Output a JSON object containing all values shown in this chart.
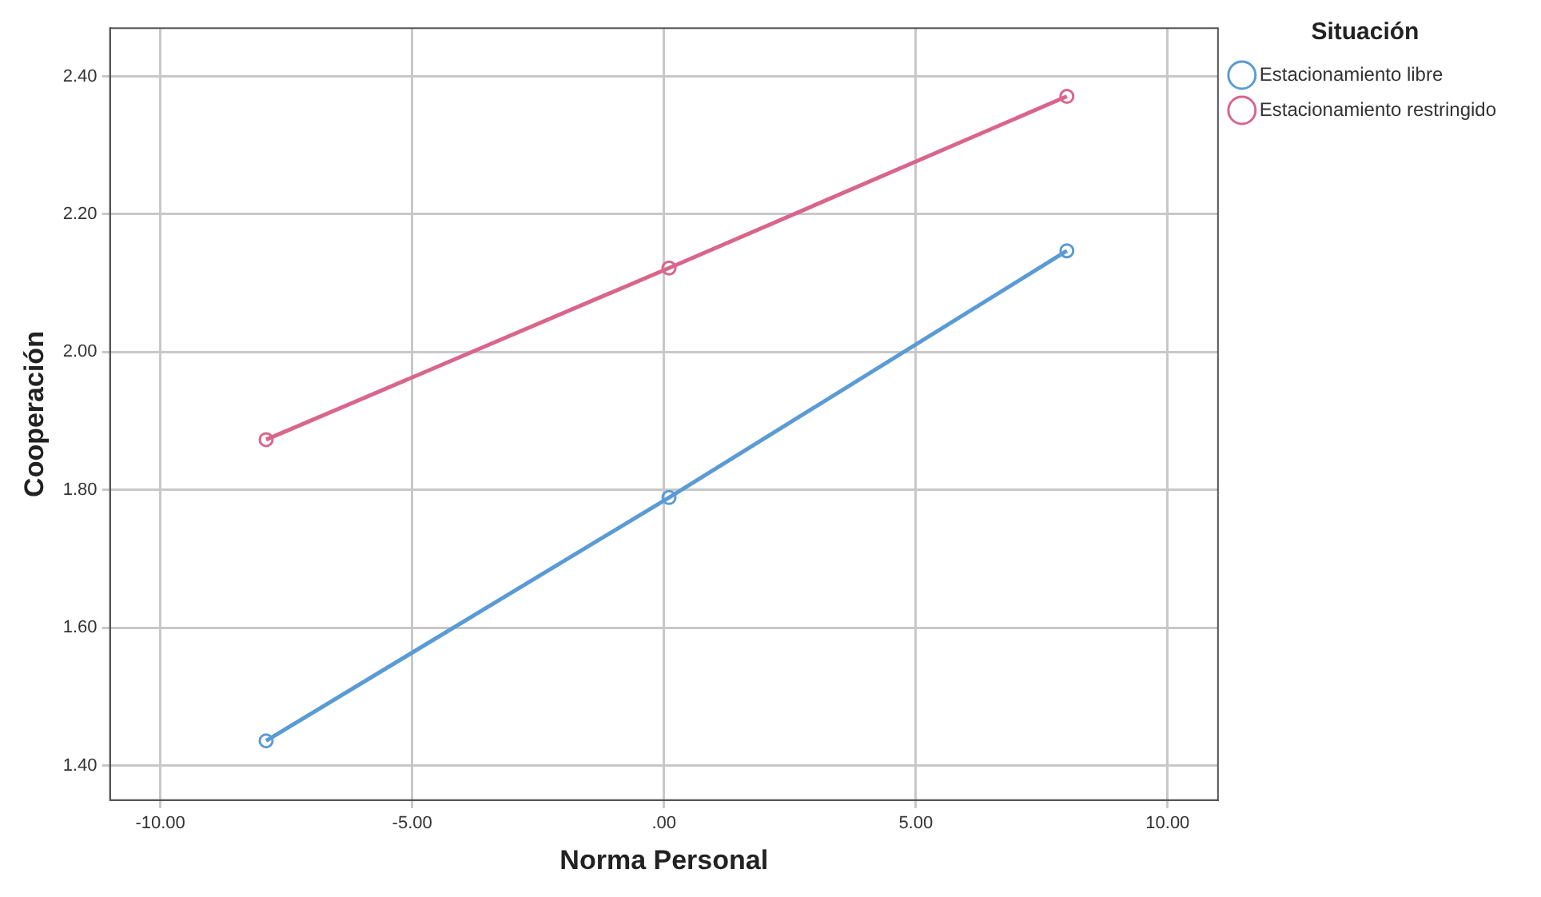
{
  "chart_data": {
    "type": "line",
    "xlabel": "Norma Personal",
    "ylabel": "Cooperación",
    "legend_title": "Situación",
    "xlim": [
      -11,
      11
    ],
    "ylim": [
      1.35,
      2.47
    ],
    "xticks": [
      {
        "value": -10,
        "label": "-10.00"
      },
      {
        "value": -5,
        "label": "-5.00"
      },
      {
        "value": 0,
        "label": ".00"
      },
      {
        "value": 5,
        "label": "5.00"
      },
      {
        "value": 10,
        "label": "10.00"
      }
    ],
    "yticks": [
      {
        "value": 1.4,
        "label": "1.40"
      },
      {
        "value": 1.6,
        "label": "1.60"
      },
      {
        "value": 1.8,
        "label": "1.80"
      },
      {
        "value": 2.0,
        "label": "2.00"
      },
      {
        "value": 2.2,
        "label": "2.20"
      },
      {
        "value": 2.4,
        "label": "2.40"
      }
    ],
    "x": [
      -7.9,
      0.1,
      8.0
    ],
    "series": [
      {
        "name": "Estacionamiento libre",
        "color": "#5b9bd5",
        "values": [
          1.436,
          1.789,
          2.147
        ]
      },
      {
        "name": "Estacionamiento restringido",
        "color": "#d9668a",
        "values": [
          1.873,
          2.122,
          2.371
        ]
      }
    ],
    "grid": true,
    "legend": "top right",
    "marker": "circle",
    "line_style": "solid"
  }
}
